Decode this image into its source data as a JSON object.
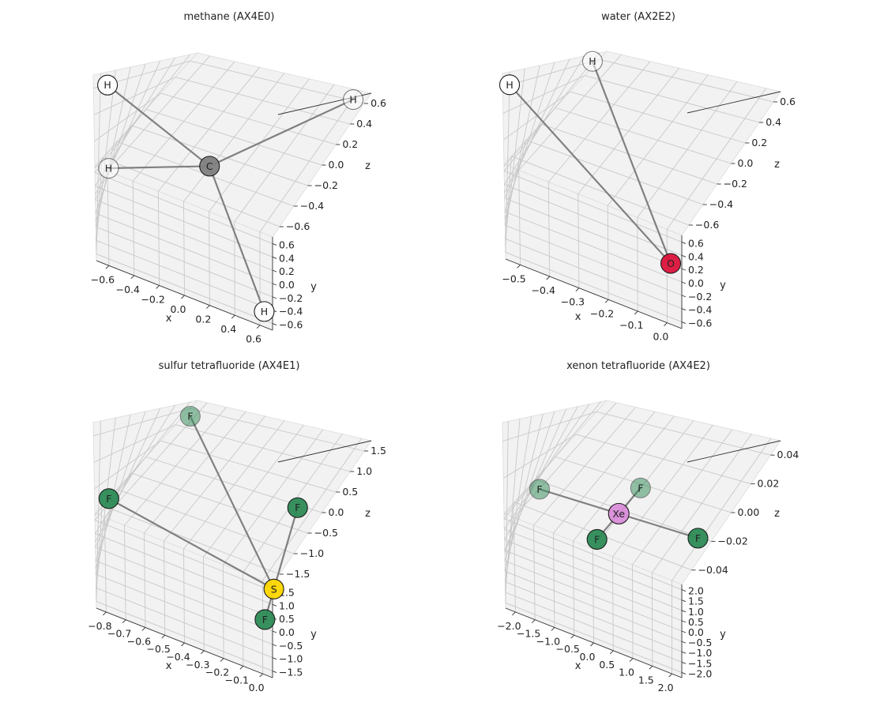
{
  "chart_data": [
    {
      "type": "scatter3d",
      "title": "methane (AX4E0)",
      "xlabel": "x",
      "ylabel": "y",
      "zlabel": "z",
      "xticks": [
        "−0.6",
        "−0.4",
        "−0.2",
        "0.0",
        "0.2",
        "0.4",
        "0.6"
      ],
      "yticks": [
        "−0.6",
        "−0.4",
        "−0.2",
        "0.0",
        "0.2",
        "0.4",
        "0.6"
      ],
      "zticks": [
        "−0.6",
        "−0.4",
        "−0.2",
        "0.0",
        "0.2",
        "0.4",
        "0.6"
      ],
      "grid": true,
      "atoms": [
        {
          "label": "C",
          "color": "#808080",
          "x": 0.0,
          "y": 0.0,
          "z": 0.0
        },
        {
          "label": "H",
          "color": "#ffffff",
          "x": 0.63,
          "y": 0.63,
          "z": 0.63
        },
        {
          "label": "H",
          "color": "#ffffff",
          "x": -0.63,
          "y": -0.63,
          "z": 0.63
        },
        {
          "label": "H",
          "color": "#ffffff",
          "x": -0.63,
          "y": 0.63,
          "z": -0.63
        },
        {
          "label": "H",
          "color": "#ffffff",
          "x": 0.63,
          "y": -0.63,
          "z": -0.63
        }
      ]
    },
    {
      "type": "scatter3d",
      "title": "water (AX2E2)",
      "xlabel": "x",
      "ylabel": "y",
      "zlabel": "z",
      "xticks": [
        "−0.5",
        "−0.4",
        "−0.3",
        "−0.2",
        "−0.1",
        "0.0"
      ],
      "yticks": [
        "−0.6",
        "−0.4",
        "−0.2",
        "0.0",
        "0.2",
        "0.4",
        "0.6"
      ],
      "zticks": [
        "−0.6",
        "−0.4",
        "−0.2",
        "0.0",
        "0.2",
        "0.4",
        "0.6"
      ],
      "grid": true,
      "atoms": [
        {
          "label": "O",
          "color": "#dc143c",
          "x": 0.0,
          "y": 0.0,
          "z": -0.6
        },
        {
          "label": "H",
          "color": "#ffffff",
          "x": -0.55,
          "y": -0.6,
          "z": 0.6
        },
        {
          "label": "H",
          "color": "#ffffff",
          "x": -0.55,
          "y": 0.6,
          "z": 0.6
        }
      ]
    },
    {
      "type": "scatter3d",
      "title": "sulfur tetrafluoride (AX4E1)",
      "xlabel": "x",
      "ylabel": "y",
      "zlabel": "z",
      "xticks": [
        "−0.8",
        "−0.7",
        "−0.6",
        "−0.5",
        "−0.4",
        "−0.3",
        "−0.2",
        "−0.1",
        "0.0"
      ],
      "yticks": [
        "−1.5",
        "−1.0",
        "−0.5",
        "0.0",
        "0.5",
        "1.0",
        "1.5"
      ],
      "zticks": [
        "−1.5",
        "−1.0",
        "−0.5",
        "0.0",
        "0.5",
        "1.0",
        "1.5"
      ],
      "grid": true,
      "atoms": [
        {
          "label": "S",
          "color": "#ffd700",
          "x": 0.0,
          "y": 0.0,
          "z": -1.0
        },
        {
          "label": "F",
          "color": "#2e8b57",
          "x": -0.8,
          "y": -1.5,
          "z": 0.3
        },
        {
          "label": "F",
          "color": "#2e8b57",
          "x": -0.8,
          "y": 1.5,
          "z": 1.4
        },
        {
          "label": "F",
          "color": "#2e8b57",
          "x": 0.0,
          "y": 0.0,
          "z": 0.6
        },
        {
          "label": "F",
          "color": "#2e8b57",
          "x": 0.0,
          "y": 0.0,
          "z": -1.6
        }
      ]
    },
    {
      "type": "scatter3d",
      "title": "xenon tetrafluoride (AX4E2)",
      "xlabel": "x",
      "ylabel": "y",
      "zlabel": "z",
      "xticks": [
        "−2.0",
        "−1.5",
        "−1.0",
        "−0.5",
        "0.0",
        "0.5",
        "1.0",
        "1.5",
        "2.0"
      ],
      "yticks": [
        "−2.0",
        "−1.5",
        "−1.0",
        "−0.5",
        "0.0",
        "0.5",
        "1.0",
        "1.5",
        "2.0"
      ],
      "zticks": [
        "−0.04",
        "−0.02",
        "0.00",
        "0.02",
        "0.04"
      ],
      "grid": true,
      "atoms": [
        {
          "label": "Xe",
          "color": "#da8fda",
          "x": 0.0,
          "y": 0.0,
          "z": 0.0
        },
        {
          "label": "F",
          "color": "#2e8b57",
          "x": -2.0,
          "y": 0.0,
          "z": 0.0
        },
        {
          "label": "F",
          "color": "#2e8b57",
          "x": 2.0,
          "y": 0.0,
          "z": 0.0
        },
        {
          "label": "F",
          "color": "#2e8b57",
          "x": 0.0,
          "y": -2.0,
          "z": 0.0
        },
        {
          "label": "F",
          "color": "#2e8b57",
          "x": 0.0,
          "y": 2.0,
          "z": 0.0
        }
      ]
    }
  ]
}
